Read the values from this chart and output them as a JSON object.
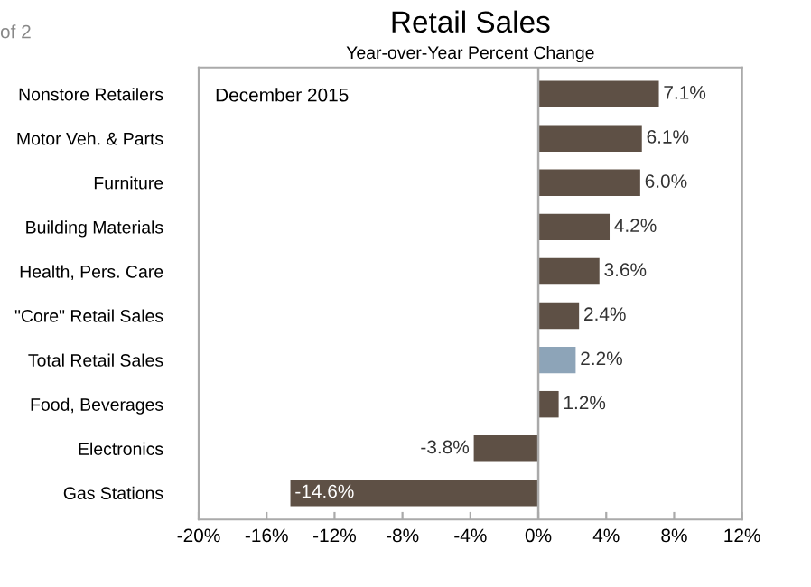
{
  "chart_data": {
    "type": "bar",
    "orientation": "horizontal",
    "title": "Retail Sales",
    "subtitle": "Year-over-Year Percent Change",
    "categories": [
      "Nonstore Retailers",
      "Motor Veh. & Parts",
      "Furniture",
      "Building Materials",
      "Health, Pers. Care",
      "\"Core\" Retail Sales",
      "Total Retail Sales",
      "Food, Beverages",
      "Electronics",
      "Gas Stations"
    ],
    "values": [
      7.1,
      6.1,
      6.0,
      4.2,
      3.6,
      2.4,
      2.2,
      1.2,
      -3.8,
      -14.6
    ],
    "colors": [
      "#5e5045",
      "#5e5045",
      "#5e5045",
      "#5e5045",
      "#5e5045",
      "#5e5045",
      "#8da4b8",
      "#5e5045",
      "#5e5045",
      "#5e5045"
    ],
    "value_labels": [
      "7.1%",
      "6.1%",
      "6.0%",
      "4.2%",
      "3.6%",
      "2.4%",
      "2.2%",
      "1.2%",
      "-3.8%",
      "-14.6%"
    ],
    "xlim": [
      -20,
      12
    ],
    "xticks": [
      {
        "value": -20,
        "label": "-20%"
      },
      {
        "value": -16,
        "label": "-16%"
      },
      {
        "value": -12,
        "label": "-12%"
      },
      {
        "value": -8,
        "label": "-8%"
      },
      {
        "value": -4,
        "label": "-4%"
      },
      {
        "value": 0,
        "label": "0%"
      },
      {
        "value": 4,
        "label": "4%"
      },
      {
        "value": 8,
        "label": "8%"
      },
      {
        "value": 12,
        "label": "12%"
      }
    ],
    "ref_lines": [
      {
        "axis": "x",
        "value": 0,
        "color": "#aaaaaa"
      }
    ],
    "annotations": [
      "December 2015",
      "of 2"
    ],
    "grid": false
  }
}
